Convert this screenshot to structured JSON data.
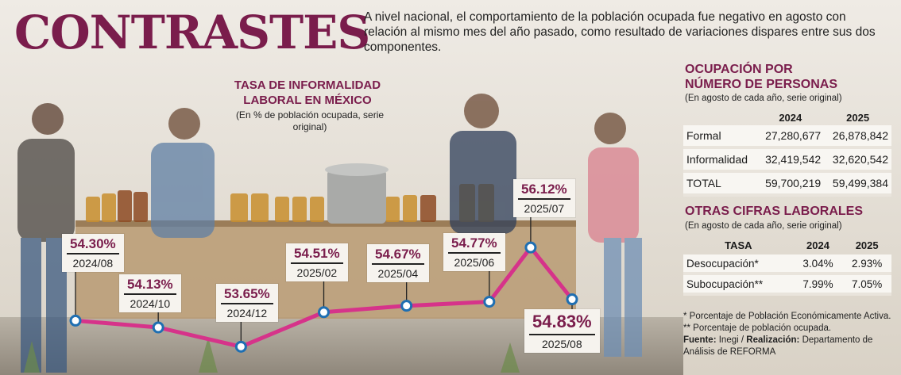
{
  "header": {
    "title": "CONTRASTES",
    "intro": "A nivel nacional, el comportamiento de la población ocupada fue negativo en agosto con relación al mismo mes del año pasado, como resultado de variaciones dispares entre sus dos componentes."
  },
  "colors": {
    "accent": "#7a1d4c",
    "line": "#d6338a",
    "marker": "#1f6fb2"
  },
  "chart_data": {
    "type": "line",
    "title": "TASA DE INFORMALIDAD LABORAL EN MÉXICO",
    "subtitle": "(En % de población ocupada, serie original)",
    "xlabel": "",
    "ylabel": "",
    "series": [
      {
        "points": [
          {
            "date": "2024/08",
            "value": 54.3,
            "value_label": "54.30%",
            "date_label": "2024/08"
          },
          {
            "date": "2024/10",
            "value": 54.13,
            "value_label": "54.13%",
            "date_label": "2024/10"
          },
          {
            "date": "2024/12",
            "value": 53.65,
            "value_label": "53.65%",
            "date_label": "2024/12"
          },
          {
            "date": "2025/02",
            "value": 54.51,
            "value_label": "54.51%",
            "date_label": "2025/02"
          },
          {
            "date": "2025/04",
            "value": 54.67,
            "value_label": "54.67%",
            "date_label": "2025/04"
          },
          {
            "date": "2025/06",
            "value": 54.77,
            "value_label": "54.77%",
            "date_label": "2025/06"
          },
          {
            "date": "2025/07",
            "value": 56.12,
            "value_label": "56.12%",
            "date_label": "2025/07"
          },
          {
            "date": "2025/08",
            "value": 54.83,
            "value_label": "54.83%",
            "date_label": "2025/08"
          }
        ]
      }
    ],
    "grid": false,
    "legend": "none"
  },
  "panel_ocupacion": {
    "title_line1": "OCUPACIÓN POR",
    "title_line2": "NÚMERO DE PERSONAS",
    "note": "(En agosto de cada año, serie original)",
    "columns": [
      "",
      "2024",
      "2025"
    ],
    "rows": [
      {
        "label": "Formal",
        "v2024": "27,280,677",
        "v2025": "26,878,842"
      },
      {
        "label": "Informalidad",
        "v2024": "32,419,542",
        "v2025": "32,620,542"
      },
      {
        "label": "TOTAL",
        "v2024": "59,700,219",
        "v2025": "59,499,384"
      }
    ]
  },
  "panel_otras": {
    "title": "OTRAS CIFRAS LABORALES",
    "note": "(En agosto de cada año, serie original)",
    "columns": [
      "TASA",
      "2024",
      "2025"
    ],
    "rows": [
      {
        "label": "Desocupación*",
        "v2024": "3.04%",
        "v2025": "2.93%"
      },
      {
        "label": "Subocupación**",
        "v2024": "7.99%",
        "v2025": "7.05%"
      }
    ]
  },
  "footer": {
    "note1": "* Porcentaje de Población Económicamente Activa.",
    "note2": "** Porcentaje de población ocupada.",
    "source_label": "Fuente:",
    "source_value": "Inegi /",
    "credit_label": "Realización:",
    "credit_value": "Departamento de Análisis de REFORMA"
  }
}
